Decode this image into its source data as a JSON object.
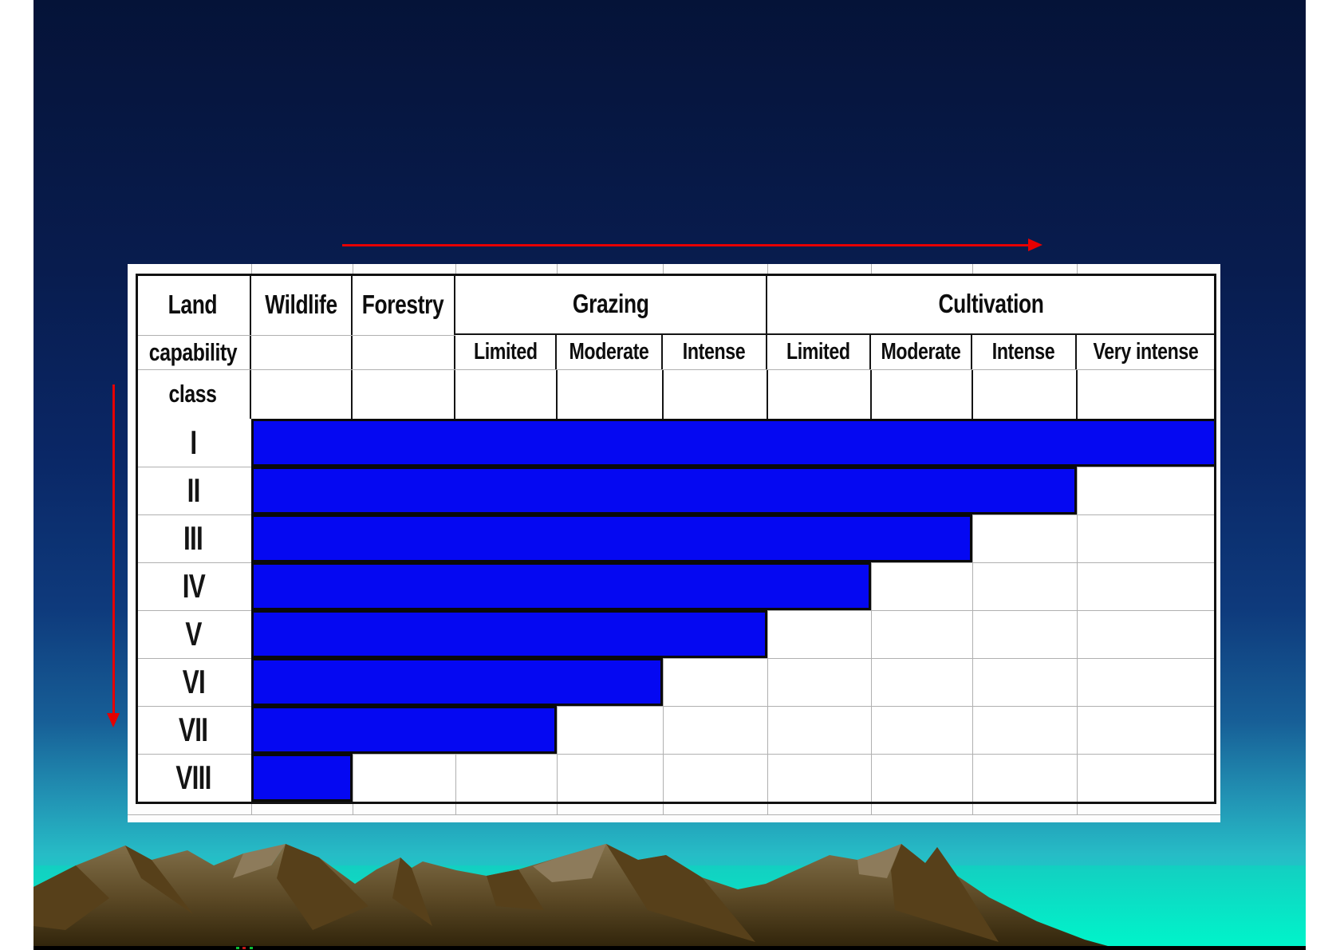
{
  "page": {
    "margin_color": "#ffffff"
  },
  "slide": {
    "gradient_top": "#051338",
    "gradient_bottom": "#00eec8",
    "footer_bar_color": "#000000",
    "accent_band_top": "#13cfc1",
    "accent_band_bottom": "#00f4ca",
    "mountain_light": "#82704a",
    "mountain_shadow": "#57401a",
    "mountain_dark_base": "#2e2209"
  },
  "arrows": {
    "color": "#e60000",
    "horizontal_direction": "right",
    "vertical_direction": "down"
  },
  "table": {
    "corner_lines": [
      "Land",
      "capability",
      "class"
    ],
    "groups": [
      {
        "label": "Wildlife",
        "subcolumns": []
      },
      {
        "label": "Forestry",
        "subcolumns": []
      },
      {
        "label": "Grazing",
        "subcolumns": [
          "Limited",
          "Moderate",
          "Intense"
        ]
      },
      {
        "label": "Cultivation",
        "subcolumns": [
          "Limited",
          "Moderate",
          "Intense",
          "Very intense"
        ]
      }
    ],
    "bar_color": "#0508f2"
  },
  "chart_data": {
    "type": "table",
    "row_axis_label": "Land capability class",
    "columns": [
      "Wildlife",
      "Forestry",
      "Grazing Limited",
      "Grazing Moderate",
      "Grazing Intense",
      "Cultivation Limited",
      "Cultivation Moderate",
      "Cultivation Intense",
      "Cultivation Very intense"
    ],
    "rows": [
      "I",
      "II",
      "III",
      "IV",
      "V",
      "VI",
      "VII",
      "VIII"
    ],
    "filled": [
      [
        1,
        1,
        1,
        1,
        1,
        1,
        1,
        1,
        1
      ],
      [
        1,
        1,
        1,
        1,
        1,
        1,
        1,
        1,
        0
      ],
      [
        1,
        1,
        1,
        1,
        1,
        1,
        1,
        0,
        0
      ],
      [
        1,
        1,
        1,
        1,
        1,
        1,
        0,
        0,
        0
      ],
      [
        1,
        1,
        1,
        1,
        1,
        0,
        0,
        0,
        0
      ],
      [
        1,
        1,
        1,
        1,
        0,
        0,
        0,
        0,
        0
      ],
      [
        1,
        1,
        1,
        0,
        0,
        0,
        0,
        0,
        0
      ],
      [
        1,
        0,
        0,
        0,
        0,
        0,
        0,
        0,
        0
      ]
    ]
  }
}
